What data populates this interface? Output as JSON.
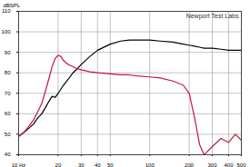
{
  "chart_data": {
    "type": "line",
    "title": "Newport Test Labs",
    "y_label": "dBSPL",
    "log": "x",
    "grid": true,
    "x": [
      10,
      11,
      12,
      13,
      14,
      15,
      16,
      17,
      18,
      19,
      20,
      21,
      22,
      24,
      26,
      28,
      30,
      35,
      40,
      50,
      60,
      70,
      80,
      100,
      120,
      150,
      180,
      200,
      220,
      240,
      260,
      300,
      350,
      400,
      450,
      500
    ],
    "series": [
      {
        "color": "#000000",
        "values": [
          49,
          51,
          53,
          55,
          58,
          60,
          63,
          66,
          68.5,
          68,
          70,
          72,
          74,
          77,
          80,
          82,
          84,
          88,
          91,
          94,
          95.5,
          96,
          96,
          96,
          95.5,
          95,
          94,
          93.5,
          93,
          92.5,
          92,
          92,
          91.5,
          91,
          91,
          91
        ]
      },
      {
        "color": "#c8143c",
        "values": [
          49,
          51,
          54,
          57,
          61,
          65,
          71,
          77,
          83,
          87,
          88.5,
          88,
          86,
          84,
          83,
          82,
          81.5,
          80.5,
          80,
          79.5,
          79,
          79,
          78.5,
          78,
          77.5,
          76,
          74,
          70,
          58,
          45,
          40,
          44,
          48,
          46,
          50,
          47
        ]
      }
    ],
    "xlim": [
      10,
      500
    ],
    "xticks": [
      {
        "value": 10,
        "label": "10 Hz"
      },
      20,
      30,
      40,
      50,
      100,
      200,
      300,
      400,
      500
    ],
    "ylim": [
      40,
      110
    ],
    "yticks": [
      40,
      50,
      60,
      70,
      80,
      90,
      100,
      110
    ]
  }
}
